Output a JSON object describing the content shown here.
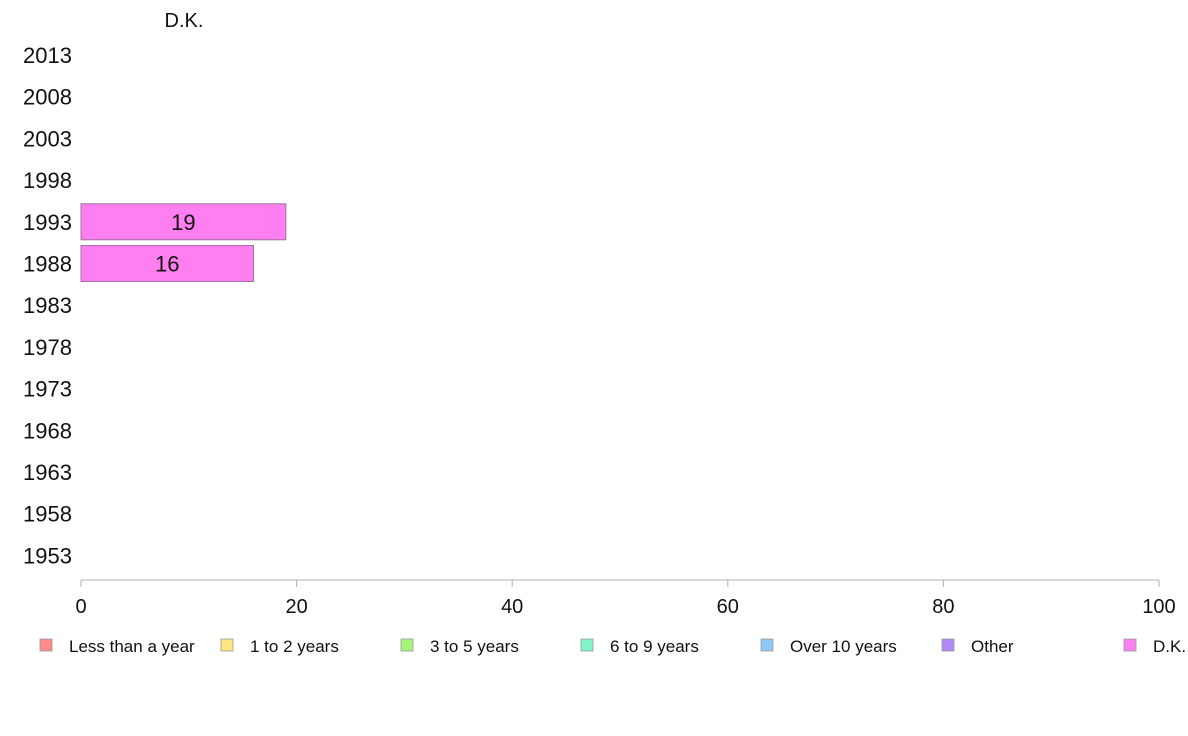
{
  "chart_data": {
    "type": "bar",
    "orientation": "horizontal",
    "title": "",
    "facet_label": "D.K.",
    "categories": [
      "2013",
      "2008",
      "2003",
      "1998",
      "1993",
      "1988",
      "1983",
      "1978",
      "1973",
      "1968",
      "1963",
      "1958",
      "1953"
    ],
    "series": [
      {
        "name": "D.K.",
        "color": "#ff7ef0",
        "values": [
          null,
          null,
          null,
          null,
          19,
          16,
          null,
          null,
          null,
          null,
          null,
          null,
          null
        ]
      }
    ],
    "xlim": [
      0,
      100
    ],
    "xticks": [
      0,
      20,
      40,
      60,
      80,
      100
    ],
    "grid": false,
    "legend_position": "bottom",
    "legend": [
      {
        "label": "Less than a year",
        "color": "#ff8a8a"
      },
      {
        "label": "1 to 2 years",
        "color": "#ffe680"
      },
      {
        "label": "3 to 5 years",
        "color": "#a6f57a"
      },
      {
        "label": "6 to 9 years",
        "color": "#7ff5c8"
      },
      {
        "label": "Over 10 years",
        "color": "#8cc8f5"
      },
      {
        "label": "Other",
        "color": "#b08af5"
      },
      {
        "label": "D.K.",
        "color": "#ff7ef0"
      }
    ]
  }
}
